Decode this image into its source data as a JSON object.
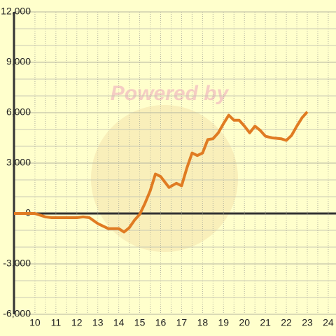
{
  "chart_data": {
    "type": "line",
    "watermark_text": "Powered by",
    "x": [
      9,
      10,
      10.5,
      10.8,
      12,
      12.3,
      12.6,
      13,
      13.5,
      14,
      14.25,
      14.5,
      14.75,
      15,
      15.25,
      15.5,
      15.75,
      16,
      16.4,
      16.75,
      17,
      17.25,
      17.5,
      17.75,
      18,
      18.25,
      18.5,
      18.75,
      19,
      19.25,
      19.5,
      19.75,
      20,
      20.25,
      20.5,
      20.75,
      21,
      21.33,
      21.75,
      22,
      22.25,
      22.5,
      22.75,
      23
    ],
    "series": [
      {
        "color": "#e07b22",
        "values": [
          0,
          0,
          -200,
          -250,
          -250,
          -200,
          -250,
          -600,
          -900,
          -900,
          -1100,
          -850,
          -400,
          -50,
          600,
          1350,
          2350,
          2200,
          1550,
          1800,
          1650,
          2700,
          3600,
          3450,
          3600,
          4400,
          4450,
          4800,
          5350,
          5850,
          5550,
          5550,
          5200,
          4800,
          5200,
          4950,
          4600,
          4500,
          4450,
          4350,
          4650,
          5200,
          5700,
          6050
        ]
      }
    ],
    "xlim": [
      9,
      24.37
    ],
    "xticks": [
      10,
      11,
      12,
      13,
      14,
      15,
      16,
      17,
      18,
      19,
      20,
      21,
      22,
      23,
      24
    ],
    "xminor": [
      10.5,
      11.5,
      12.5,
      13.5,
      14.5,
      15.5,
      16.5,
      17.5,
      18.5,
      19.5,
      20.5,
      21.5,
      22.5,
      23.5
    ],
    "ylim": [
      -6000,
      12000
    ],
    "yticks": [
      {
        "value": -6000,
        "label": "-6,000"
      },
      {
        "value": -3000,
        "label": "-3,000"
      },
      0,
      {
        "value": 3000,
        "label": "3,000"
      },
      {
        "value": 6000,
        "label": "6,000"
      },
      {
        "value": 9000,
        "label": "9,000"
      },
      {
        "value": 12000,
        "label": "12,000"
      }
    ],
    "yminor": [
      -5000,
      -4000,
      -2000,
      -1000,
      1000,
      2000,
      4000,
      5000,
      7000,
      8000,
      10000,
      11000
    ],
    "grid": true
  }
}
